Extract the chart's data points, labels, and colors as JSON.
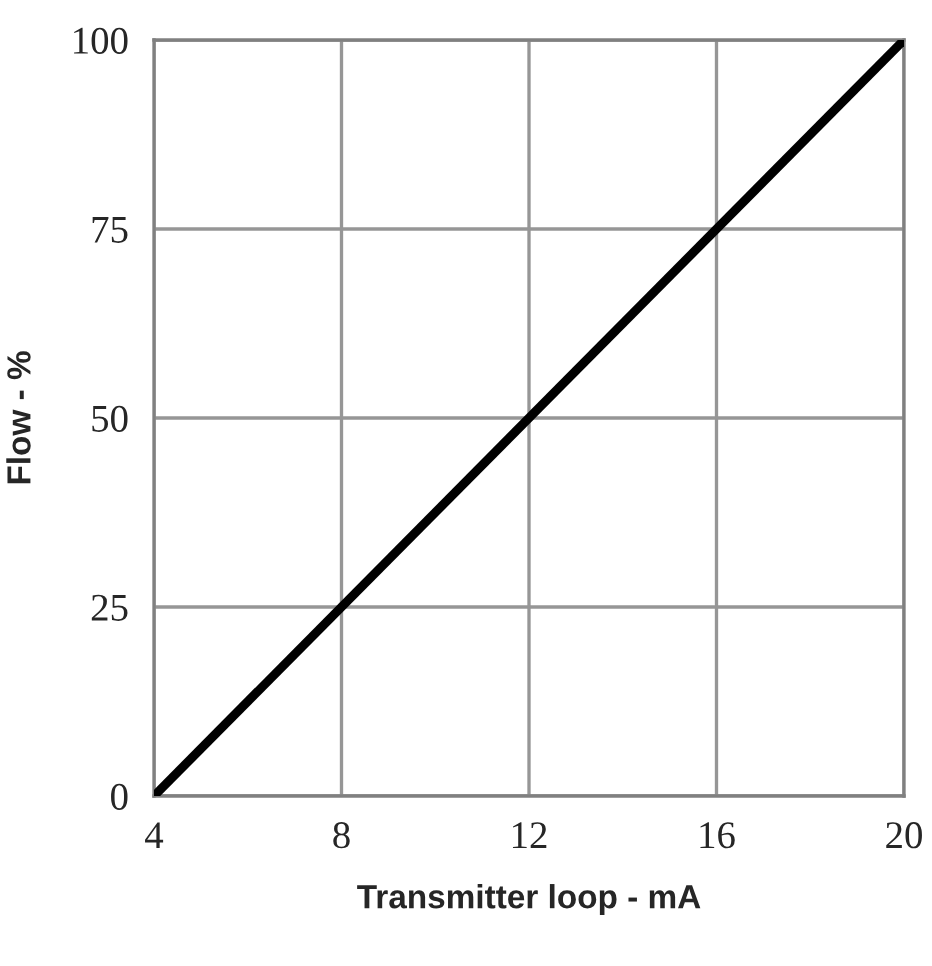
{
  "chart_data": {
    "type": "line",
    "xlabel": "Transmitter loop - mA",
    "ylabel": "Flow - %",
    "x": [
      4,
      20
    ],
    "series": [
      {
        "color": "#000000",
        "values": [
          0,
          100
        ]
      }
    ],
    "xlim": [
      4,
      20
    ],
    "xticks": [
      4,
      8,
      12,
      16,
      20
    ],
    "ylim": [
      0,
      100
    ],
    "yticks": [
      0,
      25,
      50,
      75,
      100
    ],
    "grid": true,
    "marker": "none",
    "line_style": "solid",
    "legend": false
  }
}
